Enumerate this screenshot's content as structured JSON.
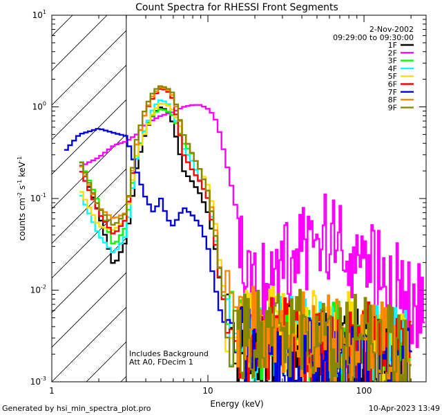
{
  "chart_data": {
    "type": "line",
    "title": "Count Spectra for RHESSI Front Segments",
    "xlabel": "Energy (keV)",
    "ylabel": "counts cm",
    "ylabel_sup1": "-2",
    "ylabel_mid": " s",
    "ylabel_sup2": "-1",
    "ylabel_end": " keV",
    "ylabel_sup3": "-1",
    "x_scale": "log",
    "y_scale": "log",
    "xlim": [
      1.0,
      250.0
    ],
    "ylim": [
      0.001,
      10.0
    ],
    "x_ticks": [
      {
        "value": 1,
        "label": "1"
      },
      {
        "value": 10,
        "label": "10"
      },
      {
        "value": 100,
        "label": "100"
      }
    ],
    "y_ticks": [
      {
        "value": 0.001,
        "base": "10",
        "exp": "-3"
      },
      {
        "value": 0.01,
        "base": "10",
        "exp": "-2"
      },
      {
        "value": 0.1,
        "base": "10",
        "exp": "-1"
      },
      {
        "value": 1,
        "base": "10",
        "exp": "0"
      },
      {
        "value": 10,
        "base": "10",
        "exp": "1"
      }
    ],
    "excluded_region": [
      1.0,
      3.0
    ],
    "date": "2-Nov-2002",
    "time_range": "09:29:00 to 09:30:00",
    "annotation_lines": [
      "Includes Background",
      "Att A0, FDecim 1"
    ],
    "footer_left": "Generated by hsi_min_spectra_plot.pro",
    "footer_right": "10-Apr-2023 13:49",
    "series": [
      {
        "name": "1F",
        "color": "#000000",
        "x": [
          1.5,
          2,
          2.5,
          3,
          3.5,
          4,
          4.5,
          5,
          5.5,
          6,
          7,
          8,
          9,
          10,
          11,
          12,
          13,
          14,
          15,
          20,
          30,
          50,
          100,
          200
        ],
        "y": [
          0.26,
          0.07,
          0.018,
          0.035,
          0.22,
          0.55,
          0.85,
          1.0,
          0.9,
          0.65,
          0.2,
          0.15,
          0.11,
          0.07,
          0.035,
          0.012,
          0.006,
          0.004,
          0.003,
          0.002,
          0.0025,
          0.002,
          0.002,
          0.0015
        ]
      },
      {
        "name": "2F",
        "color": "#ff00ff",
        "x": [
          1.5,
          2,
          2.5,
          3,
          3.5,
          4,
          5,
          6,
          7,
          8,
          9,
          10,
          11,
          12,
          14,
          16,
          18,
          20,
          22,
          25,
          30,
          40,
          50,
          60,
          70,
          80,
          100,
          150,
          200,
          240
        ],
        "y": [
          0.22,
          0.28,
          0.38,
          0.42,
          0.5,
          0.65,
          0.8,
          0.88,
          1.0,
          1.05,
          1.05,
          0.95,
          0.8,
          0.5,
          0.15,
          0.05,
          0.018,
          0.008,
          0.012,
          0.015,
          0.018,
          0.026,
          0.034,
          0.037,
          0.033,
          0.028,
          0.02,
          0.012,
          0.008,
          0.0065
        ]
      },
      {
        "name": "3F",
        "color": "#00ff00",
        "x": [
          1.5,
          2,
          2.5,
          3,
          3.5,
          4,
          4.5,
          5,
          5.5,
          6,
          7,
          8,
          9,
          10,
          11,
          12,
          13,
          14,
          15,
          20,
          30,
          50,
          100,
          200
        ],
        "y": [
          0.28,
          0.09,
          0.03,
          0.05,
          0.3,
          0.6,
          0.85,
          0.95,
          0.9,
          0.8,
          0.4,
          0.3,
          0.2,
          0.12,
          0.05,
          0.015,
          0.007,
          0.004,
          0.003,
          0.0025,
          0.003,
          0.0025,
          0.0025,
          0.002
        ]
      },
      {
        "name": "4F",
        "color": "#00ffff",
        "x": [
          1.5,
          2,
          2.5,
          3,
          3.5,
          4,
          4.5,
          5,
          5.5,
          6,
          7,
          8,
          9,
          10,
          11,
          12,
          13,
          14,
          15,
          20,
          30,
          50,
          100,
          200
        ],
        "y": [
          0.12,
          0.04,
          0.025,
          0.04,
          0.28,
          0.6,
          1.0,
          1.2,
          1.1,
          0.9,
          0.35,
          0.25,
          0.15,
          0.1,
          0.045,
          0.012,
          0.006,
          0.004,
          0.003,
          0.003,
          0.003,
          0.0025,
          0.0025,
          0.002
        ]
      },
      {
        "name": "5F",
        "color": "#ffdd00",
        "x": [
          1.5,
          2,
          2.5,
          3,
          3.5,
          4,
          4.5,
          5,
          5.5,
          6,
          7,
          8,
          9,
          10,
          11,
          12,
          13,
          14,
          15,
          20,
          30,
          50,
          100,
          200
        ],
        "y": [
          0.13,
          0.05,
          0.045,
          0.06,
          0.3,
          0.55,
          0.9,
          1.1,
          1.05,
          0.9,
          0.5,
          0.3,
          0.2,
          0.14,
          0.07,
          0.018,
          0.008,
          0.005,
          0.004,
          0.004,
          0.004,
          0.0035,
          0.003,
          0.002
        ]
      },
      {
        "name": "6F",
        "color": "#ff0000",
        "x": [
          1.5,
          2,
          2.5,
          3,
          3.5,
          4,
          4.5,
          5,
          5.5,
          6,
          7,
          8,
          9,
          10,
          11,
          12,
          13,
          14,
          15,
          20,
          30,
          50,
          100,
          200
        ],
        "y": [
          0.22,
          0.07,
          0.04,
          0.06,
          0.4,
          0.9,
          1.3,
          1.6,
          1.5,
          1.2,
          0.3,
          0.2,
          0.15,
          0.1,
          0.04,
          0.012,
          0.006,
          0.004,
          0.003,
          0.0025,
          0.003,
          0.0025,
          0.0025,
          0.002
        ]
      },
      {
        "name": "7F",
        "color": "#0000dd",
        "x": [
          1.2,
          1.5,
          2,
          2.5,
          3,
          3.5,
          4,
          4.5,
          5,
          5.5,
          6,
          7,
          8,
          9,
          10,
          11,
          12,
          13,
          14,
          15,
          20,
          30,
          50,
          100,
          200
        ],
        "y": [
          0.32,
          0.5,
          0.58,
          0.52,
          0.48,
          0.2,
          0.1,
          0.07,
          0.1,
          0.06,
          0.05,
          0.08,
          0.065,
          0.05,
          0.03,
          0.012,
          0.006,
          0.004,
          0.003,
          0.0025,
          0.002,
          0.002,
          0.0018,
          0.0015,
          0.0012
        ]
      },
      {
        "name": "8F",
        "color": "#ff8800",
        "x": [
          1.5,
          2,
          2.5,
          3,
          3.5,
          4,
          4.5,
          5,
          5.5,
          6,
          7,
          8,
          9,
          10,
          11,
          12,
          13,
          14,
          15,
          20,
          30,
          50,
          100,
          200
        ],
        "y": [
          0.25,
          0.08,
          0.06,
          0.07,
          0.4,
          0.9,
          1.4,
          1.65,
          1.55,
          1.3,
          0.5,
          0.3,
          0.2,
          0.12,
          0.06,
          0.015,
          0.007,
          0.004,
          0.003,
          0.0035,
          0.004,
          0.003,
          0.003,
          0.002
        ]
      },
      {
        "name": "9F",
        "color": "#888800",
        "x": [
          1.5,
          2,
          2.5,
          3,
          3.5,
          4,
          4.5,
          5,
          5.5,
          6,
          7,
          8,
          9,
          10,
          11,
          12,
          13,
          14,
          15,
          20,
          30,
          50,
          100,
          200
        ],
        "y": [
          0.28,
          0.08,
          0.05,
          0.07,
          0.45,
          1.0,
          1.5,
          1.7,
          1.6,
          1.4,
          0.5,
          0.3,
          0.2,
          0.12,
          0.05,
          0.015,
          0.006,
          0.004,
          0.003,
          0.0035,
          0.0035,
          0.003,
          0.003,
          0.002
        ]
      }
    ]
  }
}
